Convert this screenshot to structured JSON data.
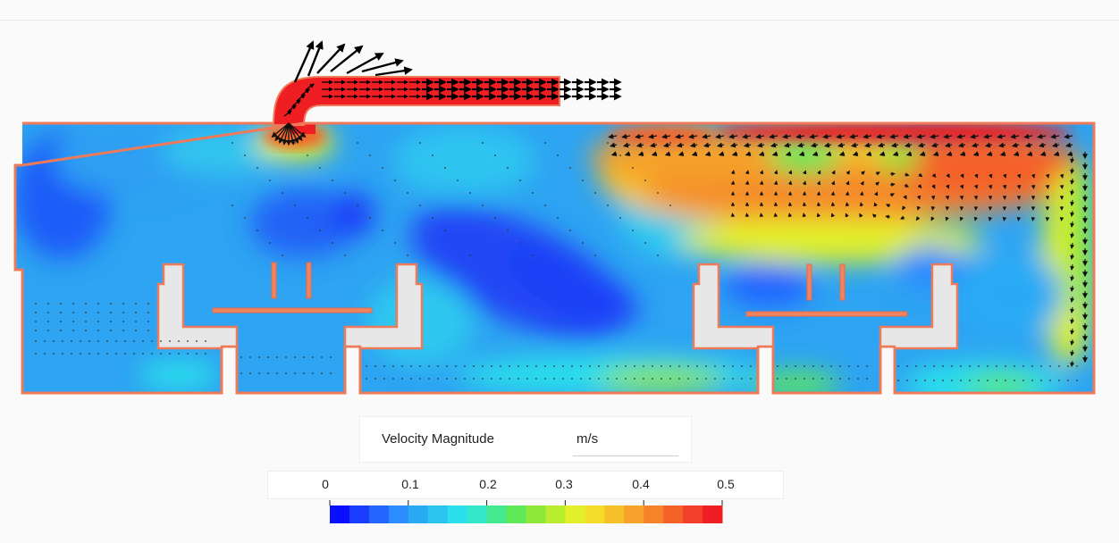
{
  "legend": {
    "title": "Velocity Magnitude",
    "unit": "m/s",
    "ticks": [
      "0",
      "0.1",
      "0.2",
      "0.3",
      "0.4",
      "0.5"
    ],
    "range": [
      0,
      0.5
    ],
    "colors": [
      "#0a10ff",
      "#1a3cff",
      "#2266ff",
      "#2a8cff",
      "#2aaaf5",
      "#29c5f0",
      "#2be0ea",
      "#33e8c8",
      "#44e88e",
      "#5fe858",
      "#8ee83a",
      "#b8ec2c",
      "#e2f02a",
      "#f5dc2a",
      "#f7c02a",
      "#f7a22a",
      "#f6832a",
      "#f4622a",
      "#f2402a",
      "#ee1e22"
    ],
    "scheme": "blue-cyan-green-yellow-red"
  },
  "field": {
    "description_colors": {
      "low": "#1e58ff",
      "mid": "#2ec8ef",
      "high": "#f4622a",
      "max": "#ee1e22",
      "wall": "#ef7a5a",
      "obstacle": "#e7e7e7"
    }
  }
}
